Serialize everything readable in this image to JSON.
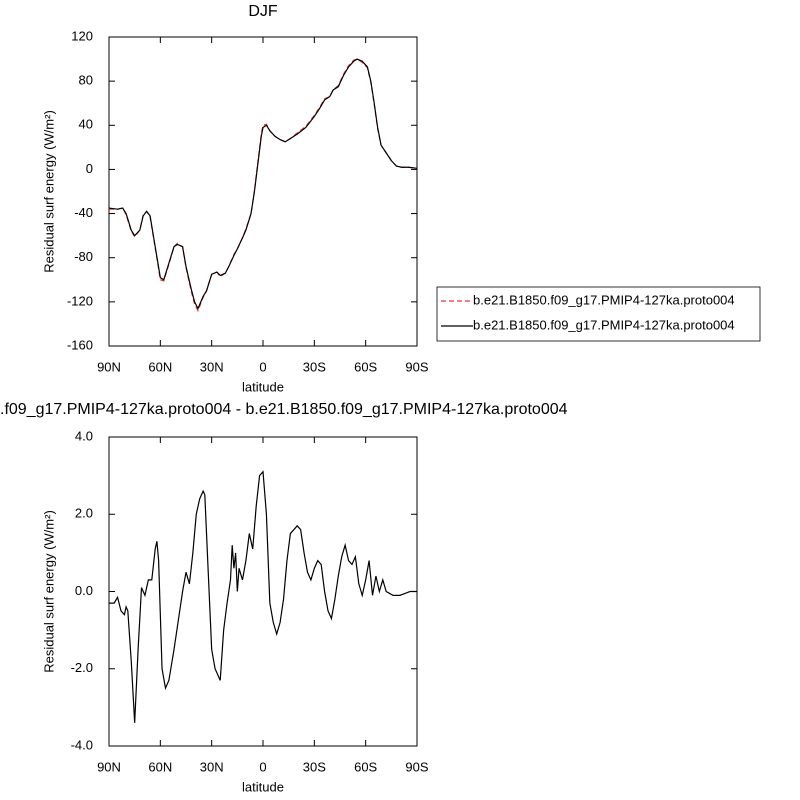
{
  "chart_data": [
    {
      "type": "line",
      "title": "DJF",
      "xlabel": "latitude",
      "ylabel": "Residual surf energy (W/m²)",
      "x": [
        90,
        85,
        82,
        80,
        77,
        75,
        72,
        70,
        68,
        66,
        63,
        60,
        58,
        55,
        52,
        50,
        47,
        45,
        42,
        40,
        38,
        35,
        33,
        30,
        27,
        25,
        22,
        20,
        17,
        15,
        12,
        10,
        7,
        5,
        3,
        1,
        0,
        -2,
        -4,
        -7,
        -10,
        -13,
        -16,
        -20,
        -25,
        -30,
        -33,
        -36,
        -39,
        -41,
        -44,
        -47,
        -50,
        -53,
        -55,
        -58,
        -61,
        -63,
        -65,
        -67,
        -69,
        -72,
        -75,
        -78,
        -81,
        -85,
        -90
      ],
      "series": [
        {
          "name": "b.e21.B1850.f09_g17.PMIP4-127ka.proto004",
          "color": "#e8352e",
          "dash": true,
          "values": [
            -36,
            -36,
            -35,
            -41,
            -56,
            -61,
            -55,
            -41,
            -38,
            -43,
            -71,
            -100,
            -101,
            -86,
            -70,
            -67,
            -70,
            -89,
            -110,
            -122,
            -128,
            -116,
            -110,
            -95,
            -93,
            -97,
            -94,
            -88,
            -77,
            -72,
            -62,
            -54,
            -40,
            -19,
            7,
            32,
            40,
            41,
            35,
            30,
            27,
            25,
            28,
            33,
            39,
            49,
            56,
            64,
            66,
            72,
            76,
            86,
            94,
            99,
            100,
            97,
            92,
            79,
            59,
            37,
            22,
            15,
            8,
            3,
            2,
            2,
            1
          ]
        },
        {
          "name": "b.e21.B1850.f09_g17.PMIP4-127ka.proto004",
          "color": "#000000",
          "dash": false,
          "values": [
            -35,
            -36,
            -35,
            -40,
            -55,
            -60,
            -55,
            -42,
            -38,
            -42,
            -70,
            -98,
            -100,
            -85,
            -70,
            -68,
            -70,
            -88,
            -108,
            -120,
            -126,
            -115,
            -110,
            -95,
            -93,
            -96,
            -94,
            -88,
            -78,
            -72,
            -62,
            -55,
            -40,
            -20,
            5,
            30,
            38,
            40,
            35,
            30,
            27,
            25,
            28,
            32,
            38,
            48,
            55,
            63,
            66,
            72,
            75,
            85,
            93,
            98,
            100,
            98,
            93,
            80,
            60,
            38,
            22,
            15,
            8,
            3,
            2,
            2,
            1
          ]
        }
      ],
      "xlim": [
        90,
        -90
      ],
      "xticks": [
        {
          "value": 90,
          "label": "90N"
        },
        {
          "value": 60,
          "label": "60N"
        },
        {
          "value": 30,
          "label": "30N"
        },
        0,
        {
          "value": -30,
          "label": "30S"
        },
        {
          "value": -60,
          "label": "60S"
        },
        {
          "value": -90,
          "label": "90S"
        }
      ],
      "ylim": [
        -160,
        120
      ],
      "yticks": [
        -160,
        -120,
        -80,
        -40,
        0,
        40,
        80,
        120
      ]
    },
    {
      "type": "line",
      "title": ".f09_g17.PMIP4-127ka.proto004 - b.e21.B1850.f09_g17.PMIP4-127ka.proto004",
      "xlabel": "latitude",
      "ylabel": "Residual surf energy (W/m²)",
      "x": [
        90,
        87,
        85,
        83,
        81,
        80,
        79,
        77,
        75,
        73,
        71,
        69,
        67,
        65,
        63,
        62,
        61,
        59,
        57,
        55,
        52,
        49,
        47,
        45,
        43,
        41,
        39,
        37,
        35,
        34,
        32,
        30,
        28,
        25,
        23,
        21,
        19,
        18,
        17,
        16,
        15,
        14,
        12,
        10,
        8,
        6,
        4,
        2,
        0,
        -2,
        -4,
        -6,
        -8,
        -10,
        -12,
        -14,
        -16,
        -18,
        -20,
        -22,
        -24,
        -26,
        -28,
        -30,
        -32,
        -34,
        -36,
        -38,
        -40,
        -42,
        -44,
        -46,
        -48,
        -50,
        -52,
        -54,
        -56,
        -58,
        -60,
        -62,
        -64,
        -66,
        -68,
        -70,
        -72,
        -74,
        -76,
        -80,
        -83,
        -86,
        -90
      ],
      "series": [
        {
          "color": "#000000",
          "dash": false,
          "values": [
            -0.3,
            -0.3,
            -0.15,
            -0.5,
            -0.6,
            -0.4,
            -0.5,
            -1.8,
            -3.4,
            -1.5,
            0.1,
            -0.1,
            0.3,
            0.3,
            1.1,
            1.3,
            0.8,
            -2.0,
            -2.5,
            -2.3,
            -1.5,
            -0.6,
            0,
            0.5,
            0.2,
            1.0,
            2.0,
            2.4,
            2.6,
            2.5,
            0.5,
            -1.5,
            -2.0,
            -2.3,
            -1.0,
            -0.3,
            0.3,
            1.2,
            0.6,
            1.0,
            0,
            0.6,
            0.3,
            0.8,
            1.5,
            1.1,
            2.2,
            3.0,
            3.1,
            2.0,
            -0.3,
            -0.8,
            -1.1,
            -0.8,
            -0.2,
            0.8,
            1.5,
            1.6,
            1.7,
            1.6,
            1.0,
            0.5,
            0.3,
            0.6,
            0.8,
            0.7,
            0,
            -0.5,
            -0.7,
            -0.2,
            0.4,
            0.9,
            1.2,
            0.8,
            0.7,
            0.9,
            0.2,
            -0.1,
            0.3,
            0.8,
            -0.1,
            0.4,
            0,
            0.3,
            0,
            -0.05,
            -0.1,
            -0.1,
            -0.05,
            0,
            0
          ]
        }
      ],
      "xlim": [
        90,
        -90
      ],
      "xticks": [
        {
          "value": 90,
          "label": "90N"
        },
        {
          "value": 60,
          "label": "60N"
        },
        {
          "value": 30,
          "label": "30N"
        },
        0,
        {
          "value": -30,
          "label": "30S"
        },
        {
          "value": -60,
          "label": "60S"
        },
        {
          "value": -90,
          "label": "90S"
        }
      ],
      "ylim": [
        -4,
        4
      ],
      "yticks": [
        {
          "value": -4,
          "label": "-4.0"
        },
        {
          "value": -2,
          "label": "-2.0"
        },
        {
          "value": 0,
          "label": "0.0"
        },
        {
          "value": 2,
          "label": "2.0"
        },
        {
          "value": 4,
          "label": "4.0"
        }
      ]
    }
  ]
}
